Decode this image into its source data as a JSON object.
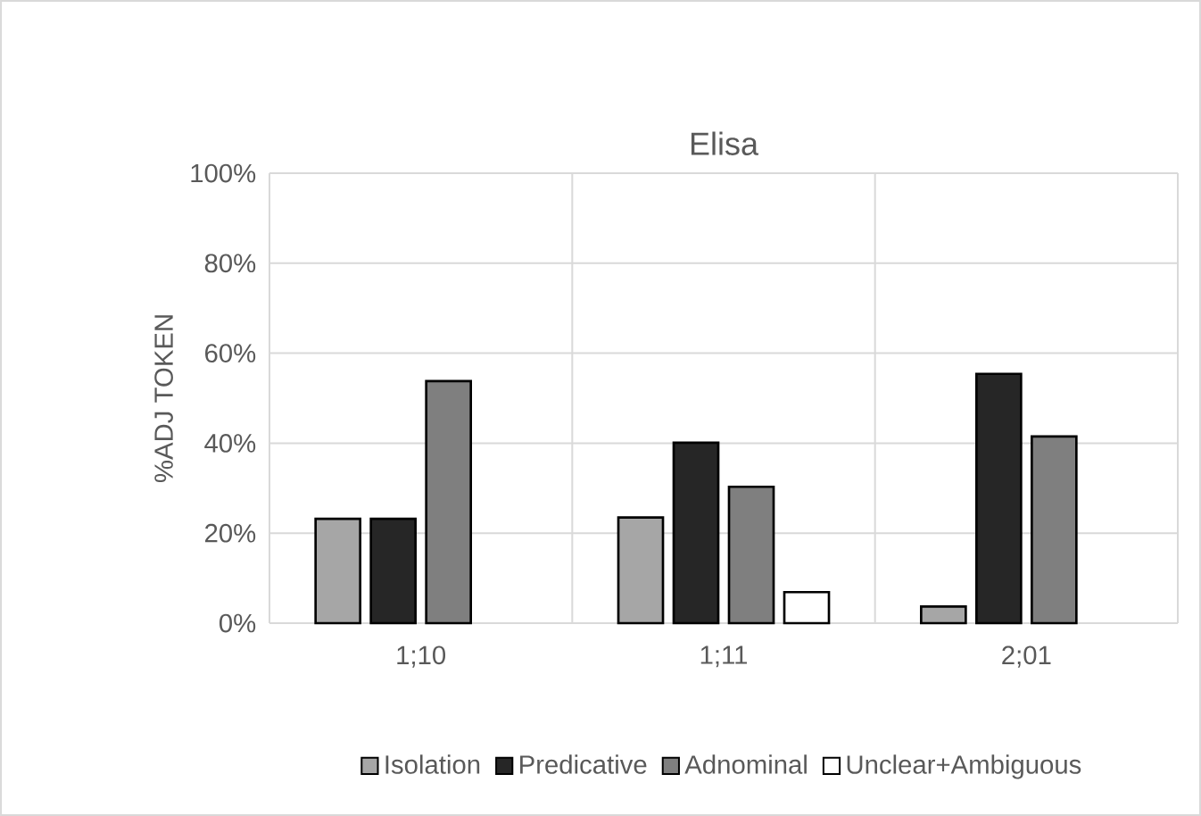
{
  "chart_data": {
    "type": "bar",
    "title": "Elisa",
    "ylabel": "%ADJ TOKEN",
    "categories": [
      "1;10",
      "1;11",
      "2;01"
    ],
    "series": [
      {
        "name": "Isolation",
        "color": "#a6a6a6",
        "values": [
          23.2,
          23.5,
          3.7
        ]
      },
      {
        "name": "Predicative",
        "color": "#262626",
        "values": [
          23.2,
          40.1,
          55.4
        ]
      },
      {
        "name": "Adnominal",
        "color": "#7f7f7f",
        "values": [
          53.8,
          30.3,
          41.5
        ]
      },
      {
        "name": "Unclear+Ambiguous",
        "color": "#ffffff",
        "values": [
          null,
          6.9,
          null
        ]
      }
    ],
    "ylim": [
      0,
      100
    ],
    "yticks": [
      {
        "value": 0,
        "label": "0%"
      },
      {
        "value": 20,
        "label": "20%"
      },
      {
        "value": 40,
        "label": "40%"
      },
      {
        "value": 60,
        "label": "60%"
      },
      {
        "value": 80,
        "label": "80%"
      },
      {
        "value": 100,
        "label": "100%"
      }
    ],
    "grid": true,
    "legend": "bottom"
  }
}
